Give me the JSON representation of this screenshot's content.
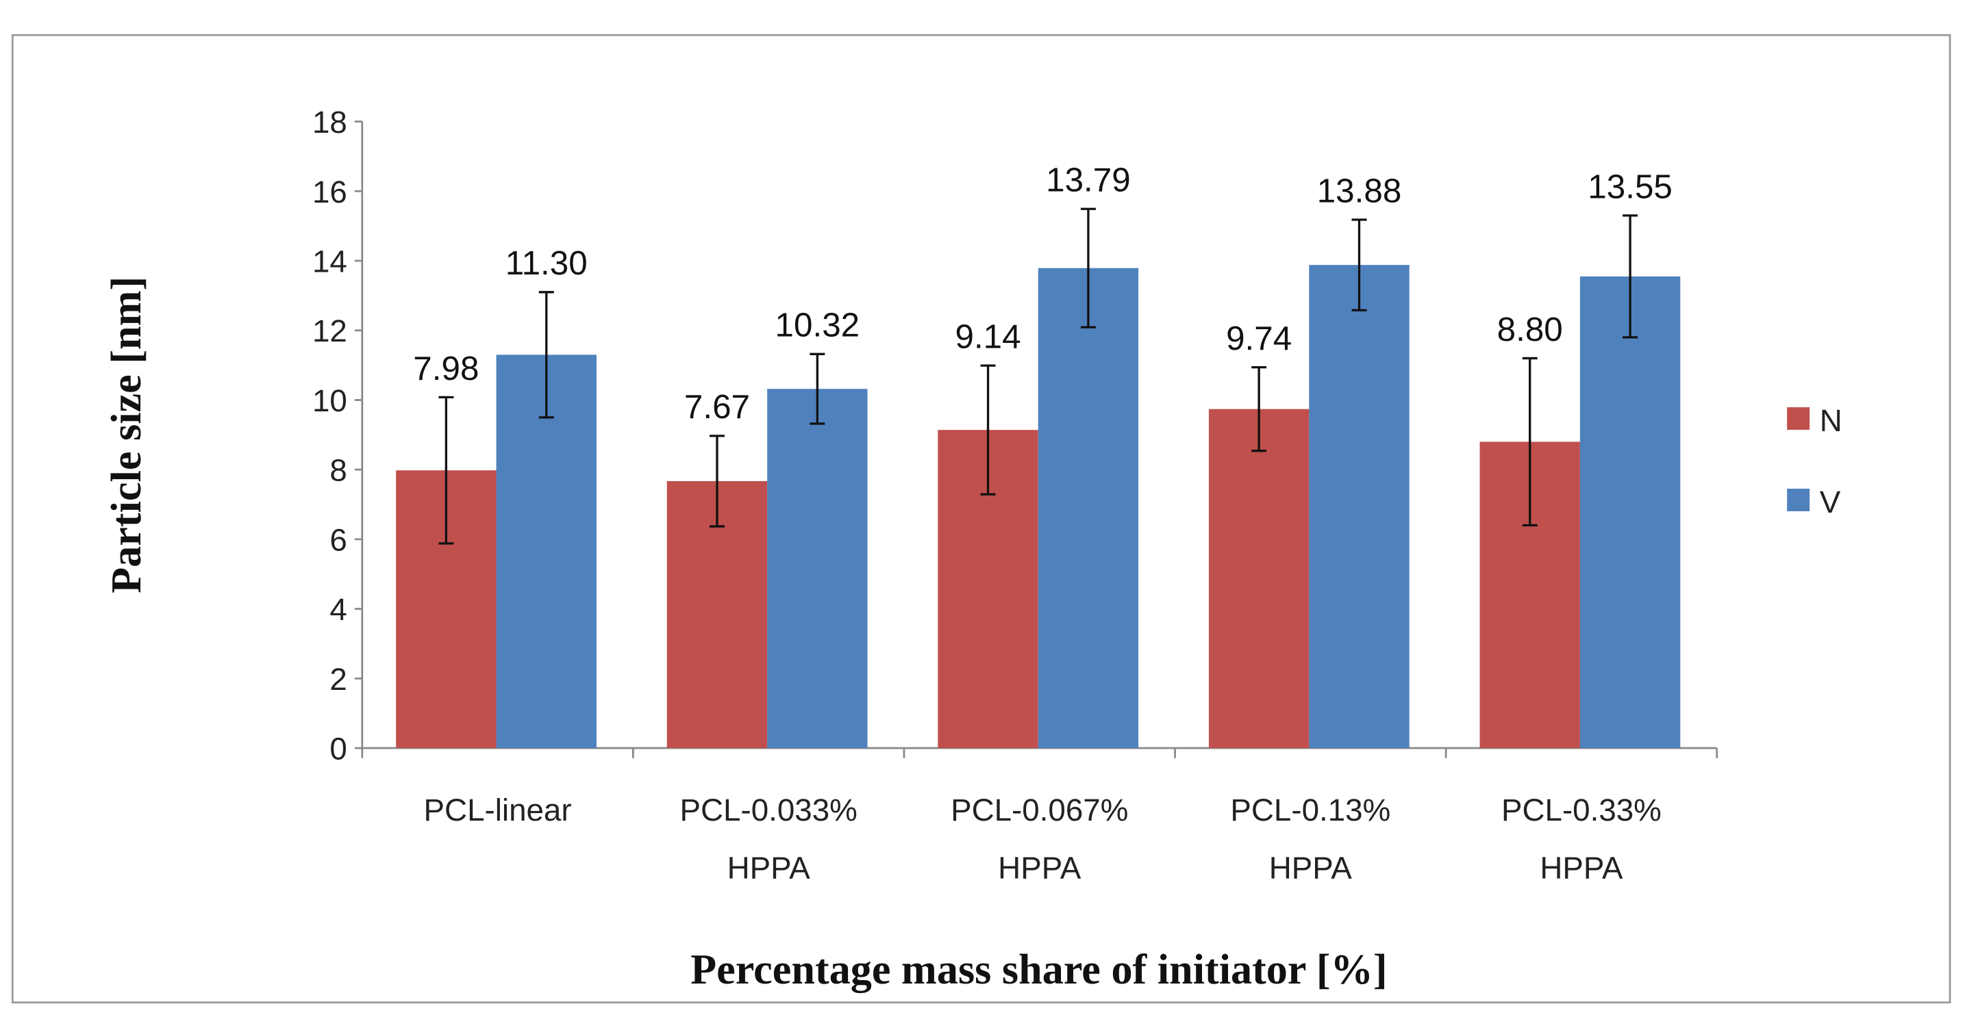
{
  "chart_data": {
    "type": "bar",
    "title": "",
    "xlabel": "Percentage mass share of initiator [%]",
    "ylabel": "Particle size [nm]",
    "ylim": [
      0,
      18
    ],
    "yticks": [
      "0",
      "2",
      "4",
      "6",
      "8",
      "10",
      "12",
      "14",
      "16",
      "18"
    ],
    "categories": [
      [
        "PCL-linear"
      ],
      [
        "PCL-0.033%",
        "HPPA"
      ],
      [
        "PCL-0.067%",
        "HPPA"
      ],
      [
        "PCL-0.13%",
        "HPPA"
      ],
      [
        "PCL-0.33%",
        "HPPA"
      ]
    ],
    "legend_position": "right",
    "series": [
      {
        "name": "N",
        "color": "#c0504d",
        "values": [
          7.98,
          7.67,
          9.14,
          9.74,
          8.8
        ],
        "labels": [
          "7.98",
          "7.67",
          "9.14",
          "9.74",
          "8.80"
        ],
        "errors": [
          2.1,
          1.3,
          1.85,
          1.2,
          2.4
        ]
      },
      {
        "name": "V",
        "color": "#4f81bd",
        "values": [
          11.3,
          10.32,
          13.79,
          13.88,
          13.55
        ],
        "labels": [
          "11.30",
          "10.32",
          "13.79",
          "13.88",
          "13.55"
        ],
        "errors": [
          1.8,
          1.0,
          1.7,
          1.3,
          1.75
        ]
      }
    ]
  }
}
